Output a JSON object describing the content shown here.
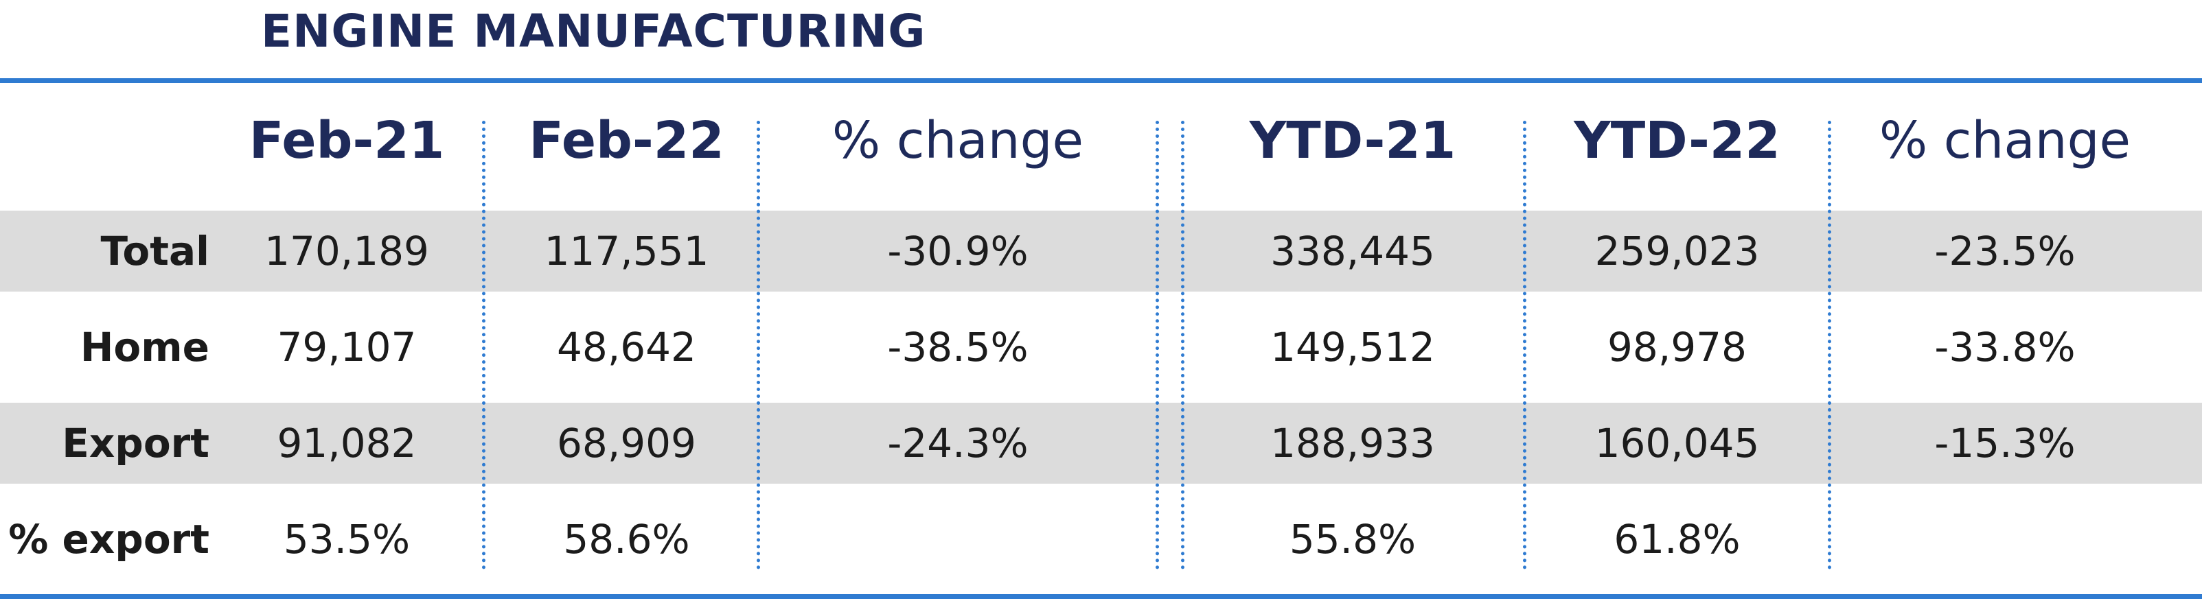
{
  "title": "ENGINE MANUFACTURING",
  "headers": [
    "Feb-21",
    "Feb-22",
    "% change",
    "YTD-21",
    "YTD-22",
    "% change"
  ],
  "rows": [
    {
      "label": "Total",
      "values": [
        "170,189",
        "117,551",
        "-30.9%",
        "338,445",
        "259,023",
        "-23.5%"
      ]
    },
    {
      "label": "Home",
      "values": [
        "79,107",
        "48,642",
        "-38.5%",
        "149,512",
        "98,978",
        "-33.8%"
      ]
    },
    {
      "label": "Export",
      "values": [
        "91,082",
        "68,909",
        "-24.3%",
        "188,933",
        "160,045",
        "-15.3%"
      ]
    },
    {
      "label": "% export",
      "values": [
        "53.5%",
        "58.6%",
        "",
        "55.8%",
        "61.8%",
        ""
      ]
    }
  ],
  "colors": {
    "title": "#1e2a5a",
    "rule": "#2f7bd1",
    "band": "#dcdcdc"
  }
}
